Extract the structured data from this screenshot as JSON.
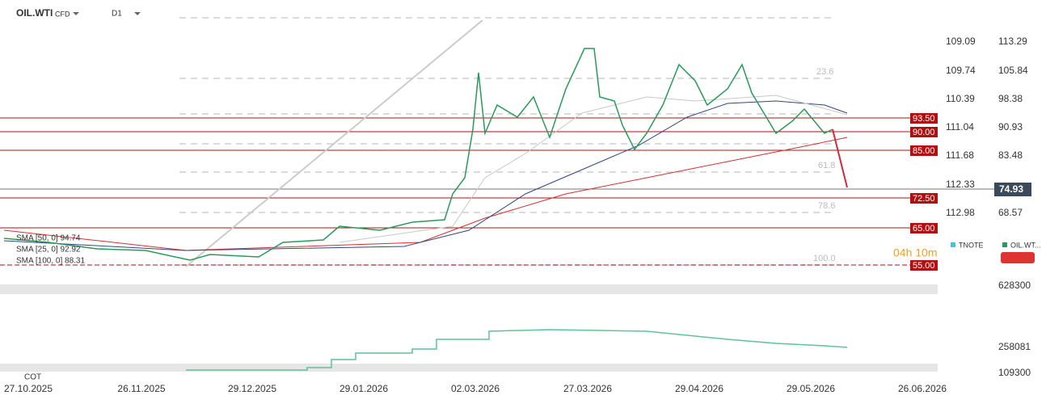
{
  "header": {
    "symbol": "OIL.WTI",
    "kind": "CFD",
    "interval": "D1"
  },
  "levels": [
    "93.50",
    "90.00",
    "85.00",
    "72.50",
    "65.00",
    "55.00"
  ],
  "fib": [
    "23.6",
    "61.8",
    "78.6",
    "100.0"
  ],
  "axis_left": [
    "109.09",
    "109.74",
    "110.39",
    "111.04",
    "111.68",
    "112.33",
    "112.98"
  ],
  "axis_right": [
    "113.29",
    "105.84",
    "98.38",
    "90.93",
    "83.48",
    "68.57"
  ],
  "price": "74.93",
  "indicators": [
    "SMA [50, 0] 94.74",
    "SMA [25, 0] 92.92",
    "SMA [100, 0] 88.31"
  ],
  "side": {
    "tnote": "TNOTE",
    "oil": "OIL.WT...",
    "timer": "04h 10m"
  },
  "cot": {
    "label": "COT",
    "axis": [
      "628300",
      "258081",
      "109300"
    ]
  },
  "dates": [
    "27.10.2025",
    "26.11.2025",
    "29.12.2025",
    "29.01.2026",
    "02.03.2026",
    "27.03.2026",
    "29.04.2026",
    "29.05.2026",
    "26.06.2026"
  ]
}
